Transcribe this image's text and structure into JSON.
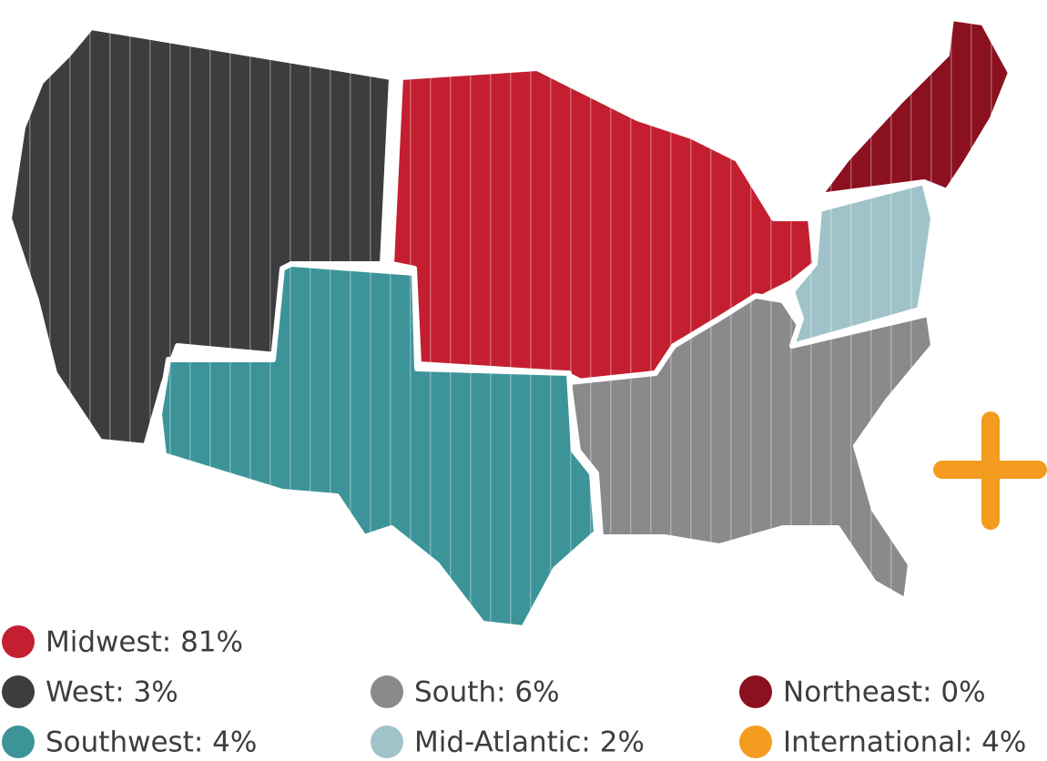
{
  "chart_data": {
    "type": "map",
    "regions": [
      {
        "label": "Midwest: 81%",
        "value": 81,
        "color": "#c41f30"
      },
      {
        "label": "West: 3%",
        "value": 3,
        "color": "#3d3d3f"
      },
      {
        "label": "South: 6%",
        "value": 6,
        "color": "#8a8a8c"
      },
      {
        "label": "Northeast: 0%",
        "value": 0,
        "color": "#8b1020"
      },
      {
        "label": "Southwest: 4%",
        "value": 4,
        "color": "#3c9499"
      },
      {
        "label": "Mid-Atlantic: 2%",
        "value": 2,
        "color": "#9fc3c8"
      },
      {
        "label": "International: 4%",
        "value": 4,
        "color": "#f39c1f"
      }
    ]
  }
}
